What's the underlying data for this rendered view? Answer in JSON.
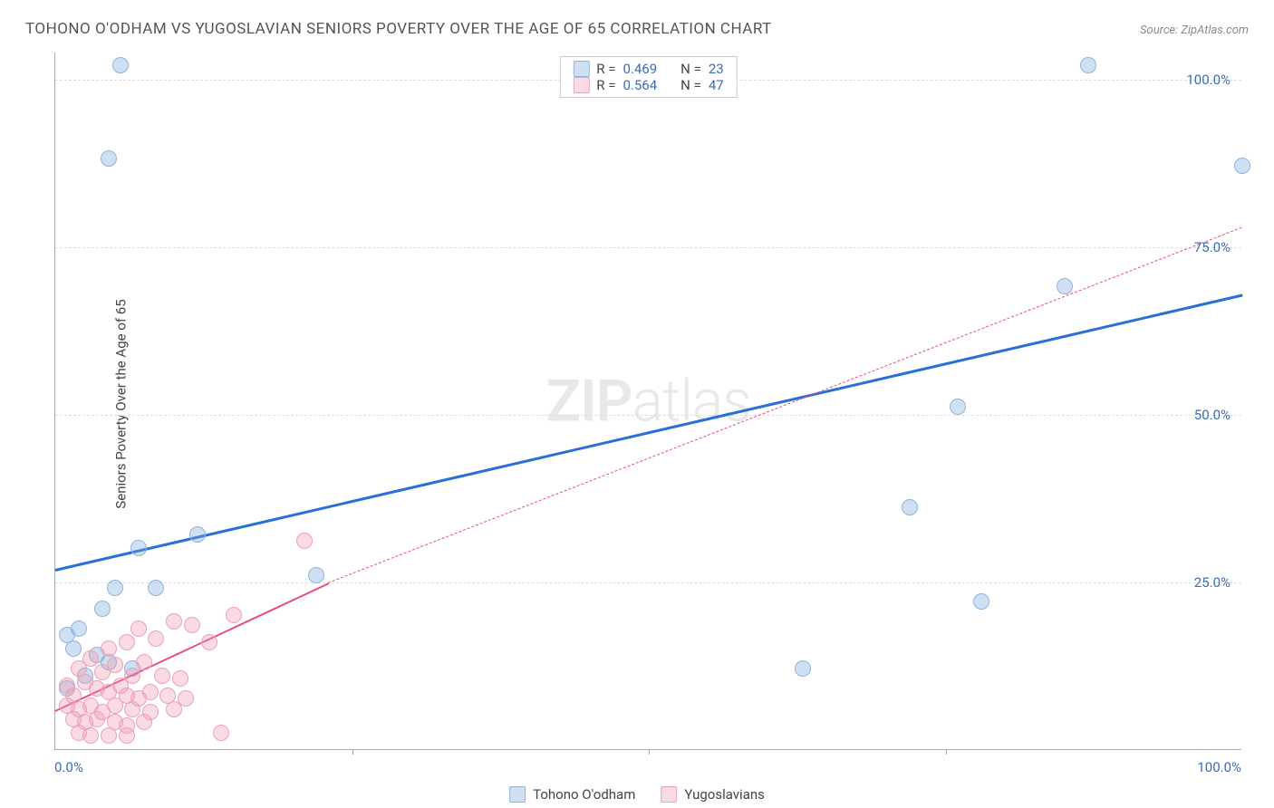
{
  "title": "TOHONO O'ODHAM VS YUGOSLAVIAN SENIORS POVERTY OVER THE AGE OF 65 CORRELATION CHART",
  "source": "Source: ZipAtlas.com",
  "ylabel": "Seniors Poverty Over the Age of 65",
  "watermark_a": "ZIP",
  "watermark_b": "atlas",
  "chart": {
    "type": "scatter",
    "xlim": [
      0,
      100
    ],
    "ylim": [
      0,
      104
    ],
    "x_ticks": [
      {
        "pos": 0,
        "label": "0.0%"
      },
      {
        "pos": 100,
        "label": "100.0%"
      }
    ],
    "x_minor_ticks": [
      25,
      50,
      75
    ],
    "y_gridlines": [
      25,
      50,
      75,
      100
    ],
    "y_tick_labels": [
      {
        "pos": 25,
        "label": "25.0%"
      },
      {
        "pos": 50,
        "label": "50.0%"
      },
      {
        "pos": 75,
        "label": "75.0%"
      },
      {
        "pos": 100,
        "label": "100.0%"
      }
    ],
    "grid_color": "#dddddd",
    "axis_color": "#aaaaaa",
    "background_color": "#ffffff",
    "series": [
      {
        "name": "Tohono O'odham",
        "color_fill": "rgba(120,165,220,0.35)",
        "color_stroke": "#8fb3db",
        "marker_radius": 9,
        "R": "0.469",
        "N": "23",
        "trend": {
          "x1": 0,
          "y1": 27,
          "x2": 100,
          "y2": 68,
          "color": "#2a6fd6",
          "width": 3,
          "dash": false,
          "extend": null
        },
        "points": [
          {
            "x": 5.5,
            "y": 102
          },
          {
            "x": 4.5,
            "y": 88
          },
          {
            "x": 87,
            "y": 102
          },
          {
            "x": 100,
            "y": 87
          },
          {
            "x": 85,
            "y": 69
          },
          {
            "x": 76,
            "y": 51
          },
          {
            "x": 72,
            "y": 36
          },
          {
            "x": 78,
            "y": 22
          },
          {
            "x": 63,
            "y": 12
          },
          {
            "x": 12,
            "y": 32
          },
          {
            "x": 7,
            "y": 30
          },
          {
            "x": 22,
            "y": 26
          },
          {
            "x": 5,
            "y": 24
          },
          {
            "x": 8.5,
            "y": 24
          },
          {
            "x": 4,
            "y": 21
          },
          {
            "x": 2,
            "y": 18
          },
          {
            "x": 1.5,
            "y": 15
          },
          {
            "x": 1,
            "y": 17
          },
          {
            "x": 3.5,
            "y": 14
          },
          {
            "x": 4.5,
            "y": 13
          },
          {
            "x": 6.5,
            "y": 12
          },
          {
            "x": 1,
            "y": 9
          },
          {
            "x": 2.5,
            "y": 11
          }
        ]
      },
      {
        "name": "Yugoslavians",
        "color_fill": "rgba(240,150,175,0.35)",
        "color_stroke": "#e9a3b8",
        "marker_radius": 9,
        "R": "0.564",
        "N": "47",
        "trend": {
          "x1": 0,
          "y1": 6,
          "x2": 23,
          "y2": 25,
          "color": "#e94b7d",
          "width": 2.5,
          "dash": false,
          "extend": {
            "x2": 100,
            "y2": 78,
            "dash": true,
            "width": 1.5
          }
        },
        "points": [
          {
            "x": 21,
            "y": 31
          },
          {
            "x": 15,
            "y": 20
          },
          {
            "x": 10,
            "y": 19
          },
          {
            "x": 11.5,
            "y": 18.5
          },
          {
            "x": 7,
            "y": 18
          },
          {
            "x": 6,
            "y": 16
          },
          {
            "x": 8.5,
            "y": 16.5
          },
          {
            "x": 13,
            "y": 16
          },
          {
            "x": 4.5,
            "y": 15
          },
          {
            "x": 3,
            "y": 13.5
          },
          {
            "x": 2,
            "y": 12
          },
          {
            "x": 4,
            "y": 11.5
          },
          {
            "x": 5,
            "y": 12.5
          },
          {
            "x": 6.5,
            "y": 11
          },
          {
            "x": 7.5,
            "y": 13
          },
          {
            "x": 9,
            "y": 11
          },
          {
            "x": 10.5,
            "y": 10.5
          },
          {
            "x": 2.5,
            "y": 10
          },
          {
            "x": 1,
            "y": 9.5
          },
          {
            "x": 1.5,
            "y": 8
          },
          {
            "x": 3.5,
            "y": 9
          },
          {
            "x": 4.5,
            "y": 8.5
          },
          {
            "x": 5.5,
            "y": 9.5
          },
          {
            "x": 6,
            "y": 8
          },
          {
            "x": 7,
            "y": 7.5
          },
          {
            "x": 8,
            "y": 8.5
          },
          {
            "x": 9.5,
            "y": 8
          },
          {
            "x": 11,
            "y": 7.5
          },
          {
            "x": 1,
            "y": 6.5
          },
          {
            "x": 2,
            "y": 6
          },
          {
            "x": 3,
            "y": 6.5
          },
          {
            "x": 4,
            "y": 5.5
          },
          {
            "x": 5,
            "y": 6.5
          },
          {
            "x": 6.5,
            "y": 6
          },
          {
            "x": 8,
            "y": 5.5
          },
          {
            "x": 10,
            "y": 6
          },
          {
            "x": 1.5,
            "y": 4.5
          },
          {
            "x": 2.5,
            "y": 4
          },
          {
            "x": 3.5,
            "y": 4.5
          },
          {
            "x": 5,
            "y": 4
          },
          {
            "x": 6,
            "y": 3.5
          },
          {
            "x": 7.5,
            "y": 4
          },
          {
            "x": 2,
            "y": 2.5
          },
          {
            "x": 3,
            "y": 2
          },
          {
            "x": 4.5,
            "y": 2
          },
          {
            "x": 6,
            "y": 2
          },
          {
            "x": 14,
            "y": 2.5
          }
        ]
      }
    ]
  },
  "legend_top_label_R": "R =",
  "legend_top_label_N": "N =",
  "legend_bottom": [
    {
      "label": "Tohono O'odham",
      "fill": "rgba(120,165,220,0.35)",
      "stroke": "#8fb3db"
    },
    {
      "label": "Yugoslavians",
      "fill": "rgba(240,150,175,0.35)",
      "stroke": "#e9a3b8"
    }
  ]
}
